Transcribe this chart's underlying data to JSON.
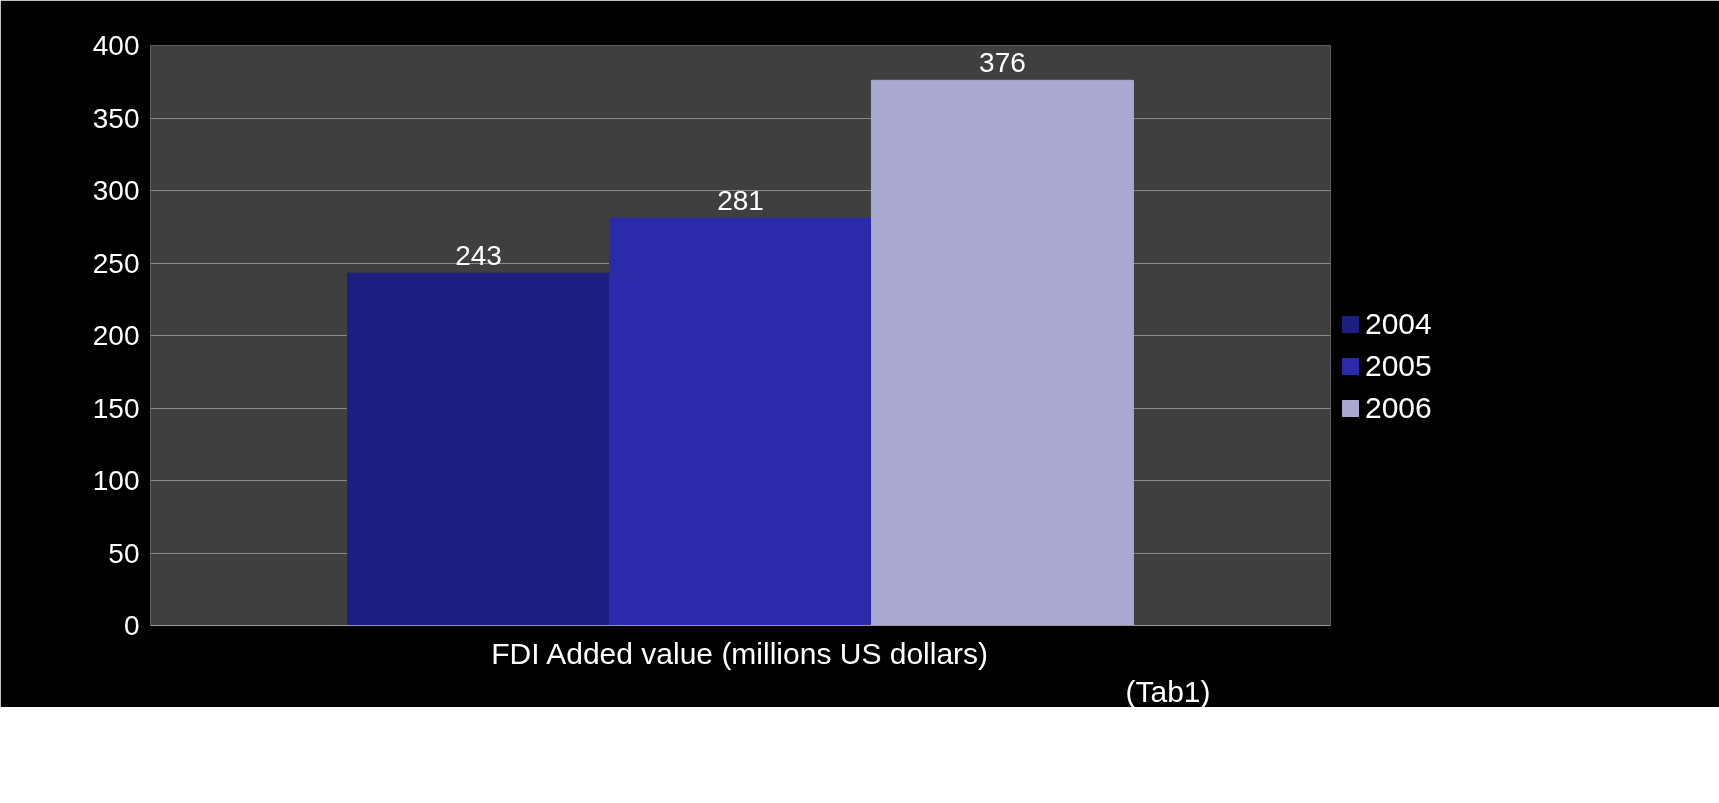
{
  "chart_data": {
    "type": "bar",
    "xlabel": "FDI Added value (millions US dollars)",
    "annotations": [
      "(Tab1)"
    ],
    "categories": [
      null
    ],
    "series": [
      {
        "name": "2004",
        "color": "#1e1e82",
        "values": [
          243
        ]
      },
      {
        "name": "2005",
        "color": "#2a2aaa",
        "values": [
          281
        ]
      },
      {
        "name": "2006",
        "color": "#a8a8d0",
        "values": [
          376
        ]
      }
    ],
    "ylim": [
      0,
      400
    ],
    "yticks": [
      0,
      50,
      100,
      150,
      200,
      250,
      300,
      350,
      400
    ],
    "grid": "y",
    "legend": "right",
    "data_labels": true
  }
}
